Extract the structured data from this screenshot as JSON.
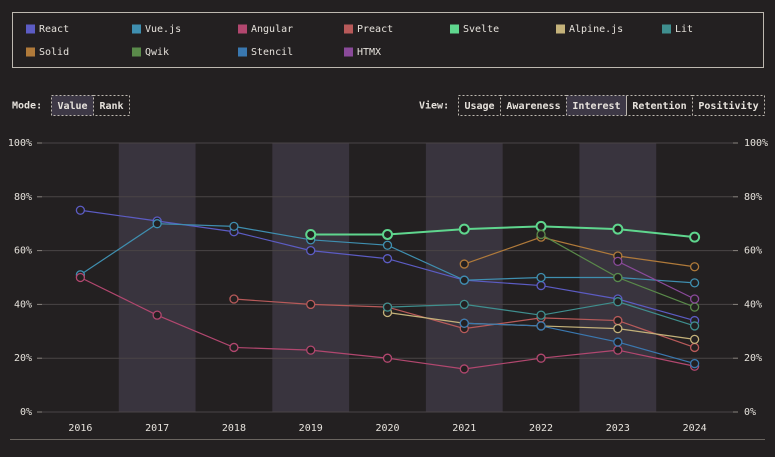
{
  "controls": {
    "mode": {
      "label": "Mode:",
      "options": [
        {
          "label": "Value",
          "active": true
        },
        {
          "label": "Rank",
          "active": false
        }
      ]
    },
    "view": {
      "label": "View:",
      "options": [
        {
          "label": "Usage",
          "active": false
        },
        {
          "label": "Awareness",
          "active": false
        },
        {
          "label": "Interest",
          "active": true
        },
        {
          "label": "Retention",
          "active": false
        },
        {
          "label": "Positivity",
          "active": false
        }
      ]
    }
  },
  "chart_data": {
    "type": "line",
    "categories": [
      "2016",
      "2017",
      "2018",
      "2019",
      "2020",
      "2021",
      "2022",
      "2023",
      "2024"
    ],
    "ylim": [
      0,
      100
    ],
    "yticks": [
      {
        "value": 0,
        "label": "0%"
      },
      {
        "value": 20,
        "label": "20%"
      },
      {
        "value": 40,
        "label": "40%"
      },
      {
        "value": 60,
        "label": "60%"
      },
      {
        "value": 80,
        "label": "80%"
      },
      {
        "value": 100,
        "label": "100%"
      }
    ],
    "grid": true,
    "series": [
      {
        "name": "React",
        "color": "#5c5cc4",
        "values": [
          75,
          71,
          67,
          60,
          57,
          49,
          47,
          42,
          34
        ]
      },
      {
        "name": "Vue.js",
        "color": "#3f8fb0",
        "values": [
          51,
          70,
          69,
          64,
          62,
          49,
          50,
          50,
          48
        ]
      },
      {
        "name": "Angular",
        "color": "#b2476f",
        "values": [
          50,
          36,
          24,
          23,
          20,
          16,
          20,
          23,
          17
        ]
      },
      {
        "name": "Preact",
        "color": "#b85a5a",
        "values": [
          null,
          null,
          42,
          40,
          39,
          31,
          35,
          34,
          24
        ]
      },
      {
        "name": "Svelte",
        "color": "#5fd68e",
        "values": [
          null,
          null,
          null,
          66,
          66,
          68,
          69,
          68,
          65
        ]
      },
      {
        "name": "Alpine.js",
        "color": "#c4b27a",
        "values": [
          null,
          null,
          null,
          null,
          37,
          33,
          32,
          31,
          27
        ]
      },
      {
        "name": "Lit",
        "color": "#3f8f8f",
        "values": [
          null,
          null,
          null,
          null,
          39,
          40,
          36,
          41,
          32
        ]
      },
      {
        "name": "Solid",
        "color": "#b07a3a",
        "values": [
          null,
          null,
          null,
          null,
          null,
          55,
          65,
          58,
          54
        ]
      },
      {
        "name": "Qwik",
        "color": "#5a8a4a",
        "values": [
          null,
          null,
          null,
          null,
          null,
          null,
          66,
          50,
          39
        ]
      },
      {
        "name": "Stencil",
        "color": "#3a78b0",
        "values": [
          null,
          null,
          null,
          null,
          null,
          33,
          32,
          26,
          18
        ]
      },
      {
        "name": "HTMX",
        "color": "#8a4a9a",
        "values": [
          null,
          null,
          null,
          null,
          null,
          null,
          null,
          56,
          42
        ]
      }
    ]
  }
}
